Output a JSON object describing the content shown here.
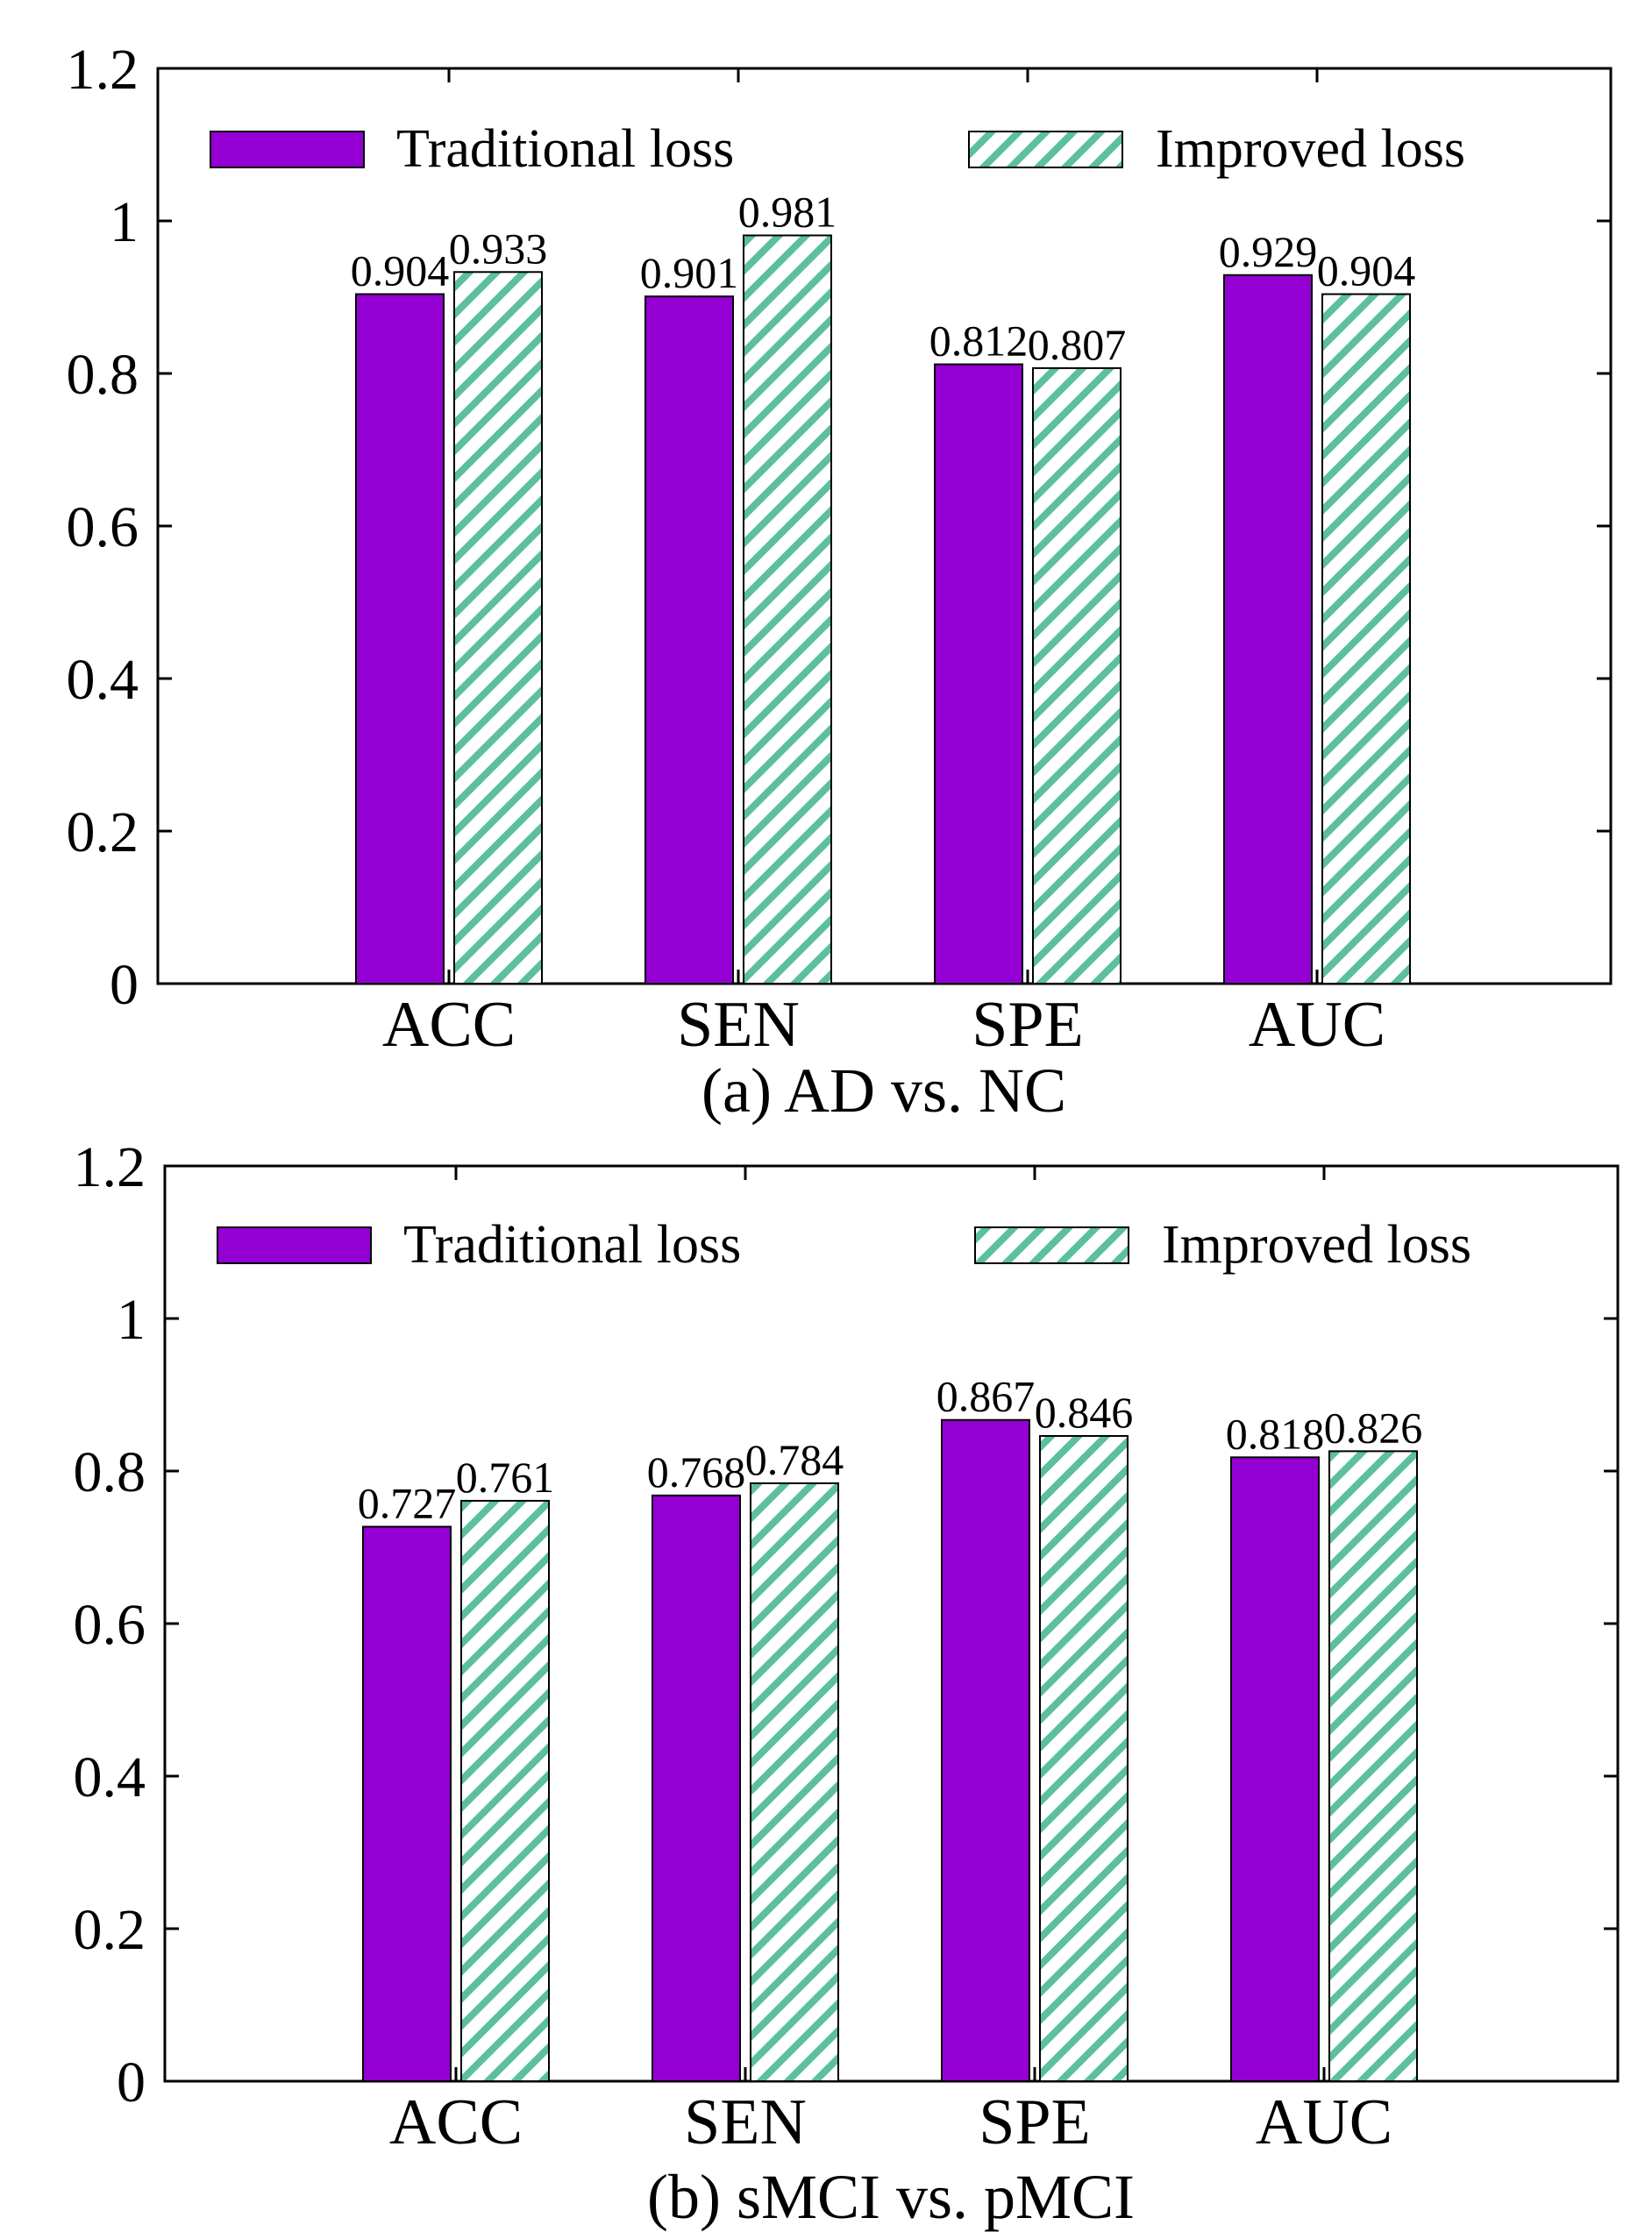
{
  "chart_data": [
    {
      "type": "bar",
      "title": "(a) AD vs. NC",
      "xlabel": "",
      "ylabel": "",
      "categories": [
        "ACC",
        "SEN",
        "SPE",
        "AUC"
      ],
      "ylim": [
        0,
        1.2
      ],
      "yticks": [
        "0",
        "0.2",
        "0.4",
        "0.6",
        "0.8",
        "1",
        "1.2"
      ],
      "legend_position": "top",
      "grid": false,
      "series": [
        {
          "name": "Traditional loss",
          "values": [
            0.904,
            0.901,
            0.812,
            0.929
          ],
          "labels": [
            "0.904",
            "0.901",
            "0.812",
            "0.929"
          ],
          "style": "solid"
        },
        {
          "name": "Improved loss",
          "values": [
            0.933,
            0.981,
            0.807,
            0.904
          ],
          "labels": [
            "0.933",
            "0.981",
            "0.807",
            "0.904"
          ],
          "style": "hatched"
        }
      ]
    },
    {
      "type": "bar",
      "title": "(b) sMCI vs. pMCI",
      "xlabel": "",
      "ylabel": "",
      "categories": [
        "ACC",
        "SEN",
        "SPE",
        "AUC"
      ],
      "ylim": [
        0,
        1.2
      ],
      "yticks": [
        "0",
        "0.2",
        "0.4",
        "0.6",
        "0.8",
        "1",
        "1.2"
      ],
      "legend_position": "top",
      "grid": false,
      "series": [
        {
          "name": "Traditional loss",
          "values": [
            0.727,
            0.768,
            0.867,
            0.818
          ],
          "labels": [
            "0.727",
            "0.768",
            "0.867",
            "0.818"
          ],
          "style": "solid"
        },
        {
          "name": "Improved loss",
          "values": [
            0.761,
            0.784,
            0.846,
            0.826
          ],
          "labels": [
            "0.761",
            "0.784",
            "0.846",
            "0.826"
          ],
          "style": "hatched"
        }
      ]
    }
  ],
  "colors": {
    "traditional": "#9400d3",
    "improved_fill": "#ffffff",
    "improved_hatch": "#5bbfa0",
    "axis": "#000000"
  }
}
